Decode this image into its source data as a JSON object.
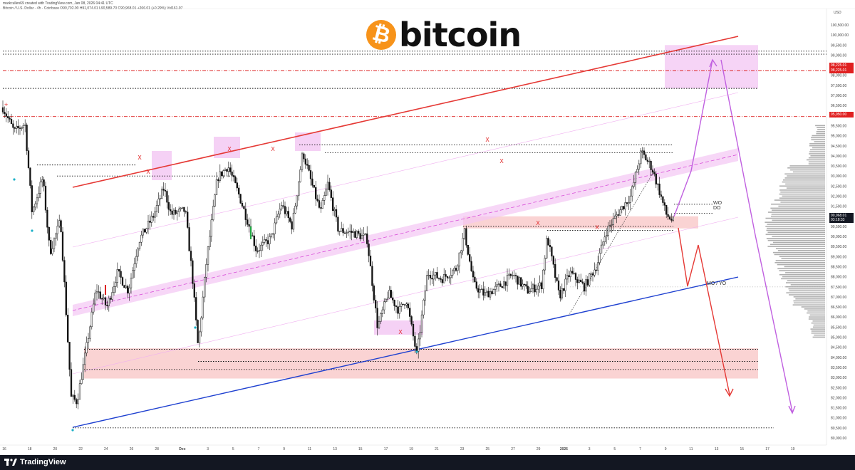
{
  "header": {
    "author_line": "markcullen69 created with TradingView.com, Jan 08, 2026 04:41 UTC",
    "symbol_line": "Bitcoin / U.S. Dollar · 4h · Coinbase  O90,702.00 H91,074.01 L90,589.70 C90,968.01 +266.01 (+0.29%)  Vol161.97"
  },
  "brand": {
    "coin_symbol": "₿",
    "text": "bitcoin",
    "coin_color": "#f7931a"
  },
  "footer": {
    "text": "TradingView"
  },
  "price_axis": {
    "currency": "USD",
    "labels": [
      "100,500.00",
      "100,000.00",
      "99,500.00",
      "99,000.00",
      "98,500.00",
      "98,000.00",
      "97,500.00",
      "97,000.00",
      "96,500.00",
      "96,000.00",
      "95,500.00",
      "95,000.00",
      "94,500.00",
      "94,000.00",
      "93,500.00",
      "93,000.00",
      "92,500.00",
      "92,000.00",
      "91,500.00",
      "91,000.00",
      "90,500.00",
      "90,000.00",
      "89,500.00",
      "89,000.00",
      "88,500.00",
      "88,000.00",
      "87,500.00",
      "87,000.00",
      "86,500.00",
      "86,000.00",
      "85,500.00",
      "85,000.00",
      "84,500.00",
      "84,000.00",
      "83,500.00",
      "83,000.00",
      "82,500.00",
      "82,000.00",
      "81,500.00",
      "81,000.00",
      "80,500.00",
      "80,000.00"
    ],
    "current_price": "90,968.01",
    "current_countdown": "03:18:33",
    "red_levels": [
      {
        "label_top": "98,225.01",
        "label_bottom": "98,225.01"
      },
      {
        "label_top": "95,950.00"
      }
    ]
  },
  "time_axis": {
    "labels": [
      "16",
      "18",
      "20",
      "22",
      "24",
      "26",
      "28",
      "Dec",
      "3",
      "5",
      "7",
      "9",
      "11",
      "13",
      "15",
      "17",
      "19",
      "21",
      "23",
      "25",
      "27",
      "29",
      "2026",
      "3",
      "5",
      "7",
      "9",
      "11",
      "13",
      "15",
      "17",
      "19"
    ]
  },
  "annotations": {
    "wd": "WO",
    "dd": "DO",
    "mo_yo": "MO / YO",
    "x_marker": "X"
  },
  "chart_data": {
    "type": "candlestick",
    "symbol": "Bitcoin / U.S. Dollar",
    "timeframe": "4h",
    "exchange": "Coinbase",
    "ohlc_last": {
      "open": 90702.0,
      "high": 91074.01,
      "low": 90589.7,
      "close": 90968.01,
      "change": 266.01,
      "change_pct": 0.29,
      "volume": 161.97
    },
    "ylim": [
      80000,
      100700
    ],
    "key_levels": [
      99200,
      99050,
      98225.01,
      97350,
      95950,
      94550,
      93550,
      93000,
      90500,
      87500,
      84400,
      83800,
      83400,
      80500
    ],
    "zones": [
      {
        "from": 97350,
        "to": 99500,
        "color": "#f3c6f3"
      },
      {
        "from": 90400,
        "to": 91000,
        "color": "#f8c4c4"
      },
      {
        "from": 82950,
        "to": 84450,
        "color": "#f8c4c4"
      }
    ],
    "trendlines": [
      {
        "name": "resistance",
        "color": "#e53935"
      },
      {
        "name": "support",
        "color": "#1e40d0"
      },
      {
        "name": "channel-mid",
        "color": "#d94fd9"
      }
    ],
    "projections": [
      {
        "color": "#c060e0",
        "path": [
          90900,
          98900,
          80700
        ]
      },
      {
        "color": "#e53935",
        "path": [
          90400,
          87600,
          89600,
          82200
        ]
      }
    ]
  }
}
